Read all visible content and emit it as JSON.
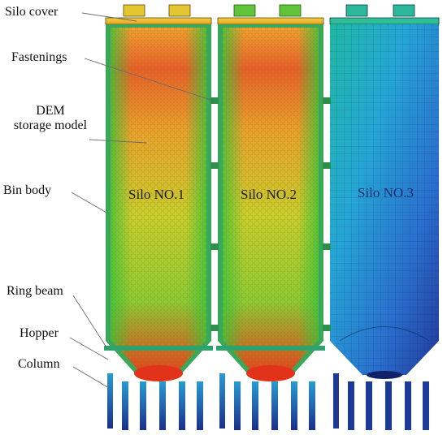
{
  "callouts": {
    "silo_cover": "Silo cover",
    "fastenings": "Fastenings",
    "dem_line1": "DEM",
    "dem_line2": "storage model",
    "bin_body": "Bin body",
    "ring_beam": "Ring beam",
    "hopper": "Hopper",
    "column": "Column"
  },
  "silos": [
    {
      "label": "Silo NO.1",
      "label_color": "#1a1a1a",
      "state": "filled"
    },
    {
      "label": "Silo NO.2",
      "label_color": "#1a1a1a",
      "state": "filled"
    },
    {
      "label": "Silo NO.3",
      "label_color": "#1b2f6b",
      "state": "empty"
    }
  ],
  "colors": {
    "red": "#e8361c",
    "orange": "#f08a24",
    "yellow": "#e6c22a",
    "yellow_green": "#b6d22a",
    "green": "#4ec43a",
    "teal": "#1fb89a",
    "cyan": "#23a9d8",
    "blue": "#2a62c8",
    "navy": "#1b2f8a"
  }
}
